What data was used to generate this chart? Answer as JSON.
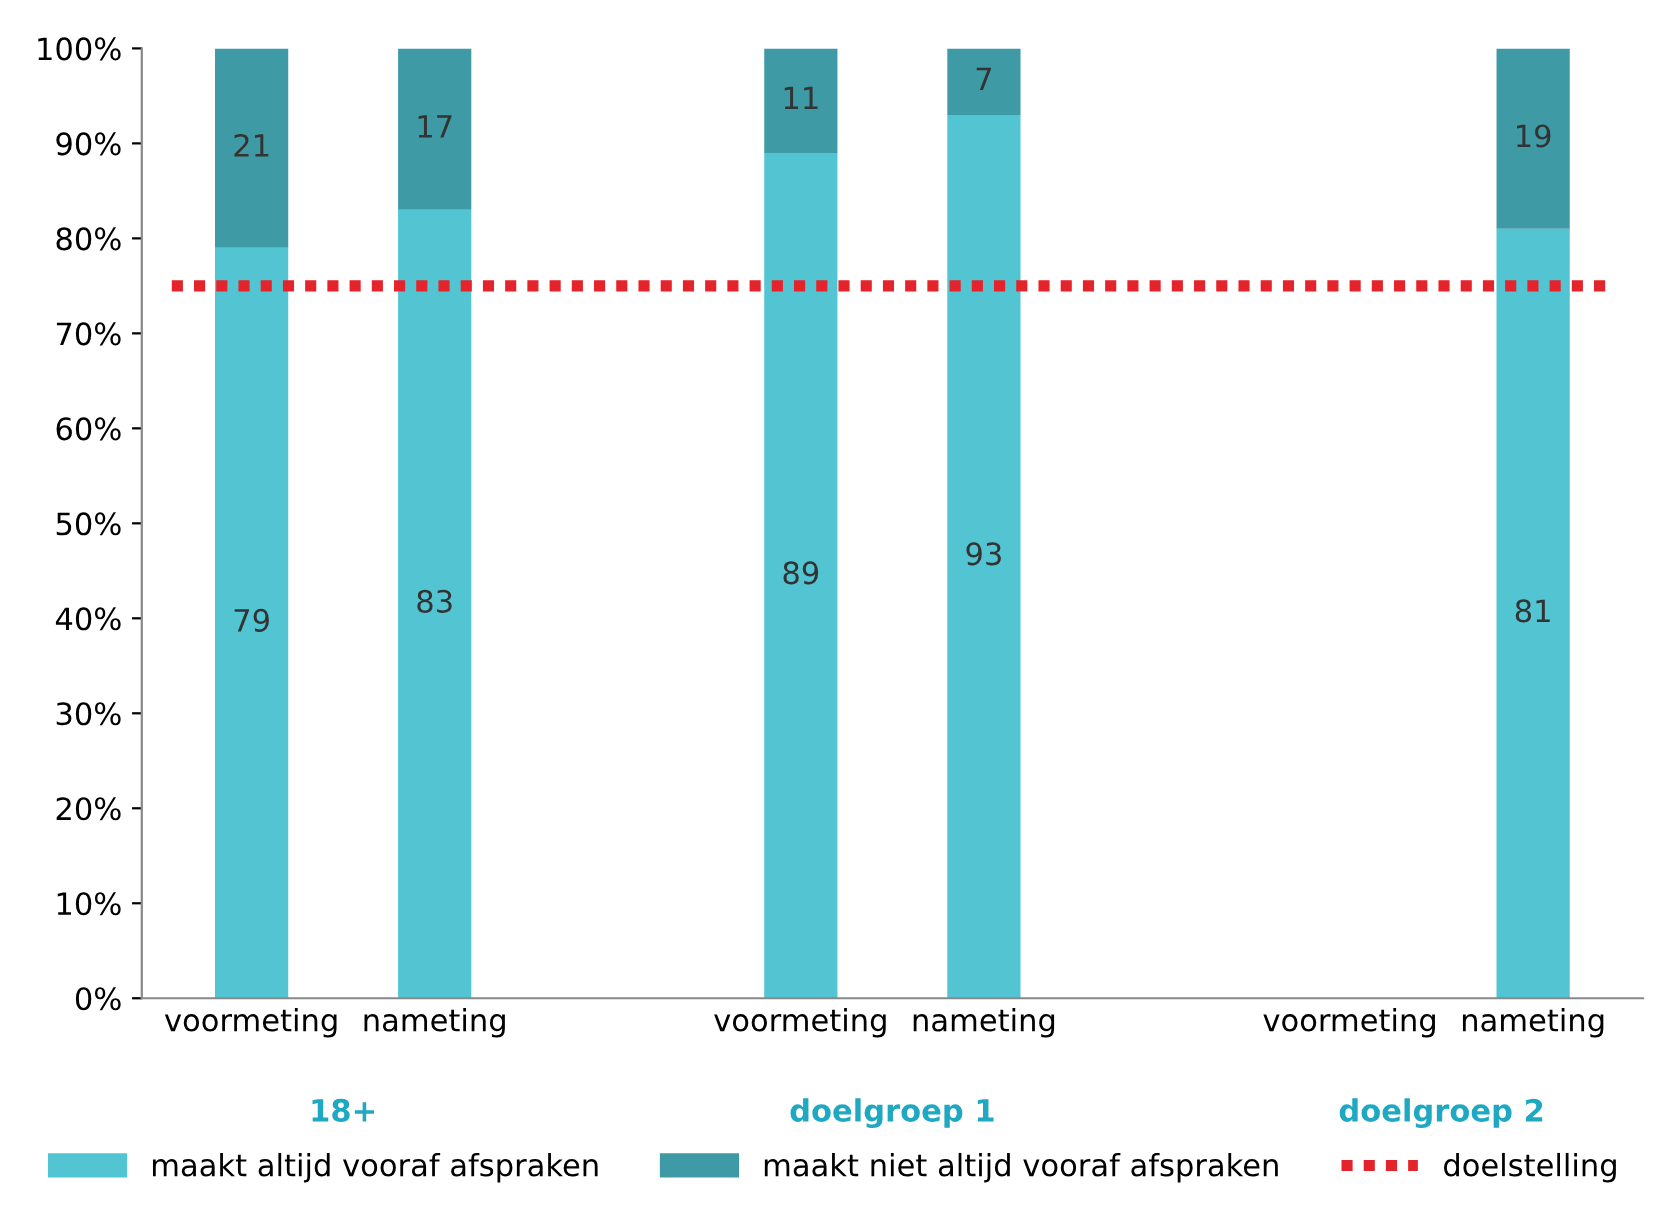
{
  "chart_data": {
    "type": "bar",
    "stacked": true,
    "categories": [
      "voormeting",
      "nameting",
      null,
      "voormeting",
      "nameting",
      null,
      "voormeting",
      "nameting"
    ],
    "series": [
      {
        "name": "maakt altijd vooraf afspraken",
        "color": "#52c4d2",
        "values": [
          79,
          83,
          null,
          89,
          93,
          null,
          null,
          81
        ]
      },
      {
        "name": "maakt niet altijd vooraf afspraken",
        "color": "#3e9ba6",
        "values": [
          21,
          17,
          null,
          11,
          7,
          null,
          null,
          19
        ]
      }
    ],
    "annotations": [
      "18+",
      "doelgroep 1",
      "doelgroep 2"
    ],
    "ref_lines": [
      {
        "axis": "y",
        "value": 75,
        "label": "doelstelling",
        "color": "#e5232b",
        "line_style": "dotted"
      }
    ],
    "ylim": [
      0,
      100
    ],
    "yticks": [
      {
        "value": 0,
        "label": "0%"
      },
      {
        "value": 10,
        "label": "10%"
      },
      {
        "value": 20,
        "label": "20%"
      },
      {
        "value": 30,
        "label": "30%"
      },
      {
        "value": 40,
        "label": "40%"
      },
      {
        "value": 50,
        "label": "50%"
      },
      {
        "value": 60,
        "label": "60%"
      },
      {
        "value": 70,
        "label": "70%"
      },
      {
        "value": 80,
        "label": "80%"
      },
      {
        "value": 90,
        "label": "90%"
      },
      {
        "value": 100,
        "label": "100%"
      }
    ],
    "data_labels": true,
    "grid": false,
    "legend": "bottom"
  }
}
